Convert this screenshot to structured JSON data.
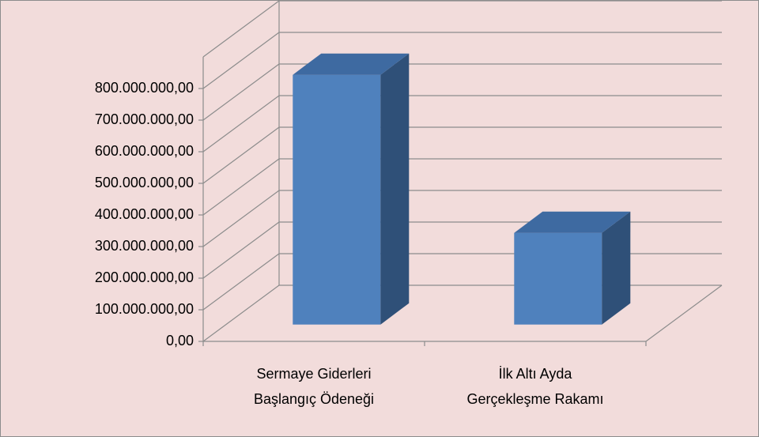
{
  "chart_data": {
    "type": "bar3d",
    "categories": [
      "Sermaye Giderleri\nBaşlangıç Ödeneği",
      "İlk Altı Ayda\nGerçekleşme Rakamı"
    ],
    "values": [
      790000000,
      290000000
    ],
    "color": "#4f81bd",
    "ylim": [
      0,
      900000000
    ],
    "yticks": [
      {
        "value": 0,
        "label": "0,00"
      },
      {
        "value": 100000000,
        "label": "100.000.000,00"
      },
      {
        "value": 200000000,
        "label": "200.000.000,00"
      },
      {
        "value": 300000000,
        "label": "300.000.000,00"
      },
      {
        "value": 400000000,
        "label": "400.000.000,00"
      },
      {
        "value": 500000000,
        "label": "500.000.000,00"
      },
      {
        "value": 600000000,
        "label": "600.000.000,00"
      },
      {
        "value": 700000000,
        "label": "700.000.000,00"
      },
      {
        "value": 800000000,
        "label": "800.000.000,00"
      }
    ],
    "grid": true
  }
}
